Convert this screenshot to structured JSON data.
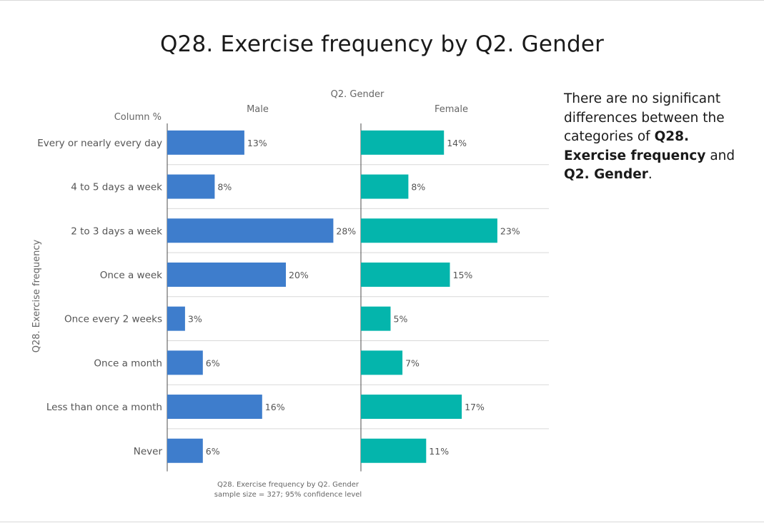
{
  "chart_data": {
    "type": "bar",
    "title": "Q28. Exercise frequency by Q2. Gender",
    "column_group_label": "Q2. Gender",
    "measure_label": "Column %",
    "ylabel": "Q28. Exercise frequency",
    "categories": [
      "Every or nearly every day",
      "4 to 5 days a week",
      "2 to 3 days a week",
      "Once a week",
      "Once every 2 weeks",
      "Once a month",
      "Less than once a month",
      "Never"
    ],
    "series": [
      {
        "name": "Male",
        "color": "#3e7dcc",
        "values": [
          13,
          8,
          28,
          20,
          3,
          6,
          16,
          6
        ]
      },
      {
        "name": "Female",
        "color": "#04b5ac",
        "values": [
          14,
          8,
          23,
          15,
          5,
          7,
          17,
          11
        ]
      }
    ],
    "value_suffix": "%",
    "xlim": [
      0,
      30
    ],
    "footnote_lines": [
      "Q28. Exercise frequency by Q2. Gender",
      "sample size = 327; 95% confidence level"
    ]
  },
  "note": {
    "before": "There are no significant differences between the categories of ",
    "bold1": "Q28. Exercise frequency",
    "middle": " and ",
    "bold2": "Q2. Gender",
    "after": "."
  }
}
